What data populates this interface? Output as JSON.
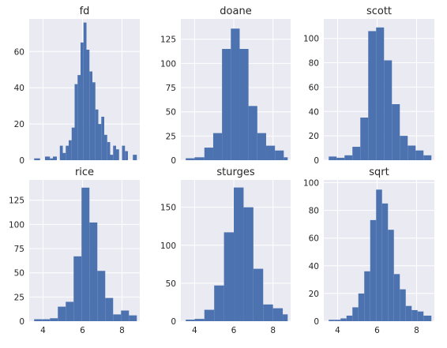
{
  "style": {
    "bar_color": "#4c72b0",
    "axes_bg": "#eaeaf2",
    "grid_color": "#ffffff",
    "text_color": "#262626"
  },
  "chart_data": [
    {
      "type": "bar",
      "title": "fd",
      "xlim": [
        3.3,
        8.9
      ],
      "ylim": [
        0,
        78
      ],
      "yticks": [
        0,
        20,
        40,
        60
      ],
      "xticks": [],
      "bins": [
        [
          3.55,
          3.85,
          1
        ],
        [
          3.85,
          4.1,
          0
        ],
        [
          4.1,
          4.35,
          2
        ],
        [
          4.35,
          4.5,
          1
        ],
        [
          4.5,
          4.7,
          2
        ],
        [
          4.7,
          4.85,
          0
        ],
        [
          4.85,
          5.0,
          8
        ],
        [
          5.0,
          5.15,
          4
        ],
        [
          5.15,
          5.3,
          8
        ],
        [
          5.3,
          5.45,
          11
        ],
        [
          5.45,
          5.6,
          18
        ],
        [
          5.6,
          5.75,
          42
        ],
        [
          5.75,
          5.9,
          47
        ],
        [
          5.9,
          6.05,
          65
        ],
        [
          6.05,
          6.2,
          76
        ],
        [
          6.2,
          6.35,
          61
        ],
        [
          6.35,
          6.5,
          49
        ],
        [
          6.5,
          6.65,
          43
        ],
        [
          6.65,
          6.8,
          28
        ],
        [
          6.8,
          6.95,
          20
        ],
        [
          6.95,
          7.1,
          24
        ],
        [
          7.1,
          7.25,
          14
        ],
        [
          7.25,
          7.4,
          10
        ],
        [
          7.4,
          7.55,
          3
        ],
        [
          7.55,
          7.7,
          8
        ],
        [
          7.7,
          7.85,
          6
        ],
        [
          7.85,
          8.0,
          0
        ],
        [
          8.0,
          8.15,
          8
        ],
        [
          8.15,
          8.3,
          5
        ],
        [
          8.3,
          8.55,
          0
        ],
        [
          8.55,
          8.75,
          3
        ]
      ]
    },
    {
      "type": "bar",
      "title": "doane",
      "xlim": [
        3.3,
        8.9
      ],
      "ylim": [
        0,
        146
      ],
      "yticks": [
        0,
        25,
        50,
        75,
        100,
        125
      ],
      "xticks": [],
      "bins": [
        [
          3.55,
          4.0,
          2
        ],
        [
          4.0,
          4.5,
          3
        ],
        [
          4.5,
          4.95,
          13
        ],
        [
          4.95,
          5.4,
          28
        ],
        [
          5.4,
          5.85,
          115
        ],
        [
          5.85,
          6.3,
          136
        ],
        [
          6.3,
          6.75,
          115
        ],
        [
          6.75,
          7.2,
          56
        ],
        [
          7.2,
          7.65,
          28
        ],
        [
          7.65,
          8.1,
          15
        ],
        [
          8.1,
          8.55,
          10
        ],
        [
          8.55,
          8.75,
          3
        ]
      ]
    },
    {
      "type": "bar",
      "title": "scott",
      "xlim": [
        3.3,
        8.9
      ],
      "ylim": [
        0,
        116
      ],
      "yticks": [
        0,
        20,
        40,
        60,
        80,
        100
      ],
      "xticks": [],
      "bins": [
        [
          3.55,
          3.95,
          3
        ],
        [
          3.95,
          4.35,
          2
        ],
        [
          4.35,
          4.75,
          4
        ],
        [
          4.75,
          5.15,
          11
        ],
        [
          5.15,
          5.55,
          35
        ],
        [
          5.55,
          5.95,
          106
        ],
        [
          5.95,
          6.35,
          109
        ],
        [
          6.35,
          6.75,
          82
        ],
        [
          6.75,
          7.15,
          46
        ],
        [
          7.15,
          7.55,
          20
        ],
        [
          7.55,
          7.95,
          12
        ],
        [
          7.95,
          8.35,
          8
        ],
        [
          8.35,
          8.75,
          4
        ]
      ]
    },
    {
      "type": "bar",
      "title": "rice",
      "xlim": [
        3.3,
        8.9
      ],
      "ylim": [
        0,
        146
      ],
      "yticks": [
        0,
        25,
        50,
        75,
        100,
        125
      ],
      "xticks": [
        4,
        6,
        8
      ],
      "bins": [
        [
          3.55,
          3.95,
          2
        ],
        [
          3.95,
          4.35,
          2
        ],
        [
          4.35,
          4.75,
          3
        ],
        [
          4.75,
          5.15,
          15
        ],
        [
          5.15,
          5.55,
          20
        ],
        [
          5.55,
          5.95,
          67
        ],
        [
          5.95,
          6.35,
          138
        ],
        [
          6.35,
          6.75,
          102
        ],
        [
          6.75,
          7.15,
          52
        ],
        [
          7.15,
          7.55,
          24
        ],
        [
          7.55,
          7.95,
          7
        ],
        [
          7.95,
          8.35,
          11
        ],
        [
          8.35,
          8.75,
          6
        ]
      ]
    },
    {
      "type": "bar",
      "title": "sturges",
      "xlim": [
        3.3,
        8.9
      ],
      "ylim": [
        0,
        186
      ],
      "yticks": [
        0,
        50,
        100,
        150
      ],
      "xticks": [
        4,
        6,
        8
      ],
      "bins": [
        [
          3.55,
          4.0,
          2
        ],
        [
          4.0,
          4.5,
          3
        ],
        [
          4.5,
          5.0,
          15
        ],
        [
          5.0,
          5.5,
          47
        ],
        [
          5.5,
          6.0,
          117
        ],
        [
          6.0,
          6.5,
          176
        ],
        [
          6.5,
          7.0,
          150
        ],
        [
          7.0,
          7.5,
          69
        ],
        [
          7.5,
          8.0,
          22
        ],
        [
          8.0,
          8.5,
          17
        ],
        [
          8.5,
          8.75,
          9
        ]
      ]
    },
    {
      "type": "bar",
      "title": "sqrt",
      "xlim": [
        3.3,
        8.9
      ],
      "ylim": [
        0,
        102
      ],
      "yticks": [
        0,
        20,
        40,
        60,
        80,
        100
      ],
      "xticks": [
        4,
        6,
        8
      ],
      "bins": [
        [
          3.55,
          3.85,
          1
        ],
        [
          3.85,
          4.15,
          1
        ],
        [
          4.15,
          4.45,
          2
        ],
        [
          4.45,
          4.75,
          4
        ],
        [
          4.75,
          5.05,
          10
        ],
        [
          5.05,
          5.35,
          20
        ],
        [
          5.35,
          5.65,
          36
        ],
        [
          5.65,
          5.95,
          73
        ],
        [
          5.95,
          6.25,
          95
        ],
        [
          6.25,
          6.55,
          85
        ],
        [
          6.55,
          6.85,
          66
        ],
        [
          6.85,
          7.15,
          34
        ],
        [
          7.15,
          7.45,
          23
        ],
        [
          7.45,
          7.75,
          11
        ],
        [
          7.75,
          8.05,
          8
        ],
        [
          8.05,
          8.35,
          7
        ],
        [
          8.35,
          8.75,
          4
        ]
      ]
    }
  ]
}
